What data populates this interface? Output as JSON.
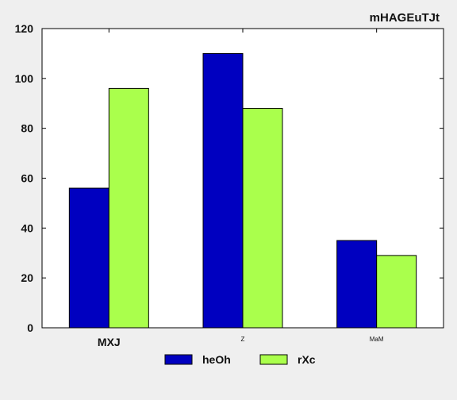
{
  "chart_data": {
    "type": "bar",
    "title": "mHAGEuTJt",
    "xlabel": "",
    "ylabel": "",
    "categories": [
      "MXJ",
      "Z",
      "MaM"
    ],
    "series": [
      {
        "name": "heOh",
        "values": [
          56,
          110,
          35
        ],
        "color": "#0000c0"
      },
      {
        "name": "rXc",
        "values": [
          96,
          88,
          29
        ],
        "color": "#aaff4c"
      }
    ],
    "ylim": [
      0,
      120
    ],
    "yticks": [
      0,
      20,
      40,
      60,
      80,
      100,
      120
    ],
    "grid": false,
    "legend_position": "bottom-center",
    "tick_label_sizes": [
      "large",
      "tiny",
      "tiny"
    ]
  }
}
